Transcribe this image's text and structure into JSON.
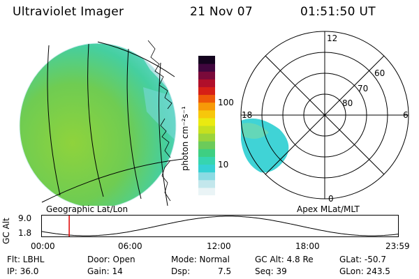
{
  "header": {
    "instrument": "Ultraviolet Imager",
    "date": "21 Nov 07",
    "time": "01:51:50 UT"
  },
  "left_panel": {
    "caption": "Geographic Lat/Lon"
  },
  "colorbar": {
    "unit_label": "photon cm⁻²s⁻¹",
    "tick_100": "100",
    "tick_10": "10",
    "colors": [
      "#eaf4f6",
      "#c3e7ec",
      "#8bdbe3",
      "#36d1d4",
      "#36d5b0",
      "#3ecf82",
      "#6ccb5a",
      "#9bd43a",
      "#c6e01f",
      "#eaea10",
      "#f7c70b",
      "#f79a07",
      "#ee5a08",
      "#d62016",
      "#b00f2a",
      "#7a0a3a",
      "#40063e",
      "#14031e"
    ]
  },
  "polar_panel": {
    "caption": "Apex MLat/MLT",
    "mlt_12": "12",
    "mlt_18": "18",
    "mlt_6": "6",
    "mlt_0": "0",
    "lat_60": "60",
    "lat_70": "70",
    "lat_80": "80"
  },
  "altitude_plot": {
    "ylabel": "GC Alt",
    "ymax": "9.0",
    "ymin": "1.8",
    "xticks": [
      "00:00",
      "06:00",
      "12:00",
      "18:00",
      "23:59"
    ],
    "current_time_hours": 1.86
  },
  "footer": {
    "flt": "Flt: LBHL",
    "ip": "IP: 36.0",
    "door": "Door: Open",
    "gain": "Gain: 14",
    "mode": "Mode: Normal",
    "dsp_label": "Dsp:",
    "dsp_value": "7.5",
    "gc_alt": "GC Alt: 4.8 Re",
    "seq": "Seq: 39",
    "glat": "GLat: -50.7",
    "glon": "GLon: 243.5"
  }
}
